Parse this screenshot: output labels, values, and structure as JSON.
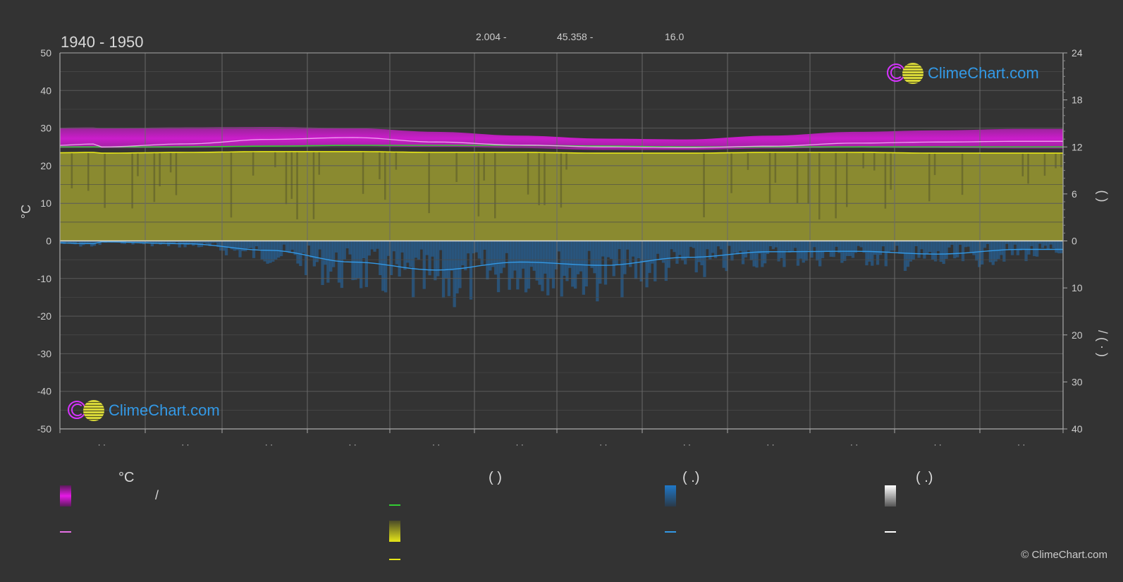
{
  "header": {
    "title": "1940 - 1950",
    "info": [
      "2.004 -",
      "45.358 -",
      "16.0"
    ]
  },
  "chart_data": {
    "type": "area",
    "title": "1940 - 1950",
    "ylabel_left": "°C",
    "ylabel_right": "(    )",
    "ylabel_right_lower": "/ (  ·  )",
    "ylim_left": [
      -50,
      50
    ],
    "yticks_left": [
      50,
      40,
      30,
      20,
      10,
      0,
      -10,
      -20,
      -30,
      -40,
      -50
    ],
    "yticks_right_upper": [
      24,
      18,
      12,
      6,
      0
    ],
    "yticks_right_lower": [
      10,
      20,
      30,
      40
    ],
    "month_labels": [
      "· ·",
      "· ·",
      "· ·",
      "· ·",
      "· ·",
      "· ·",
      "· ·",
      "· ·",
      "· ·",
      "· ·",
      "· ·",
      "· ·"
    ],
    "grid": true,
    "colors": {
      "temp_range": "#e619e6",
      "daylight": "#33cc33",
      "sunshine_area": "#9a9a30",
      "sunshine_line": "#e6e619",
      "precip": "#1f78c8",
      "precip_line": "#3399e6",
      "mean_temp": "#f0a0f0"
    },
    "series": [
      {
        "key": "max_temp",
        "values": [
          30.0,
          30.2,
          30.3,
          30.0,
          29.0,
          28.0,
          27.2,
          27.0,
          28.0,
          29.0,
          29.4,
          29.8
        ]
      },
      {
        "key": "min_temp",
        "values": [
          23.5,
          23.6,
          23.8,
          24.0,
          23.8,
          23.5,
          23.0,
          23.0,
          23.4,
          23.6,
          23.5,
          23.4
        ]
      },
      {
        "key": "mean_temp",
        "values": [
          25.0,
          25.8,
          27.0,
          27.5,
          26.3,
          25.5,
          25.0,
          24.8,
          25.2,
          26.0,
          26.3,
          26.5
        ]
      },
      {
        "key": "daylight_hours",
        "values": [
          12.0,
          12.0,
          12.1,
          12.2,
          12.2,
          12.2,
          12.1,
          12.0,
          12.0,
          12.0,
          12.0,
          12.0
        ]
      },
      {
        "key": "sunshine_hours",
        "values": [
          11.2,
          11.3,
          11.4,
          11.4,
          11.3,
          11.3,
          11.2,
          11.2,
          11.3,
          11.3,
          11.2,
          11.2
        ]
      },
      {
        "key": "precip_mm",
        "values": [
          0.2,
          0.6,
          2.0,
          4.5,
          6.2,
          4.5,
          5.2,
          3.5,
          2.3,
          2.2,
          2.8,
          1.8
        ]
      }
    ]
  },
  "legend": {
    "col1_head": "°C",
    "col2_head": "(          )",
    "col3_head": "(    .)",
    "col4_head": "(    .)",
    "col1_row1_text": "/",
    "colors": [
      "#e619e6",
      "#e670e6",
      "#33cc33",
      "#d8d838",
      "#e6e619",
      "#1f78c8",
      "#3399e6",
      "#ffffff"
    ]
  },
  "logo_text": "ClimeChart.com",
  "copyright": "© ClimeChart.com"
}
